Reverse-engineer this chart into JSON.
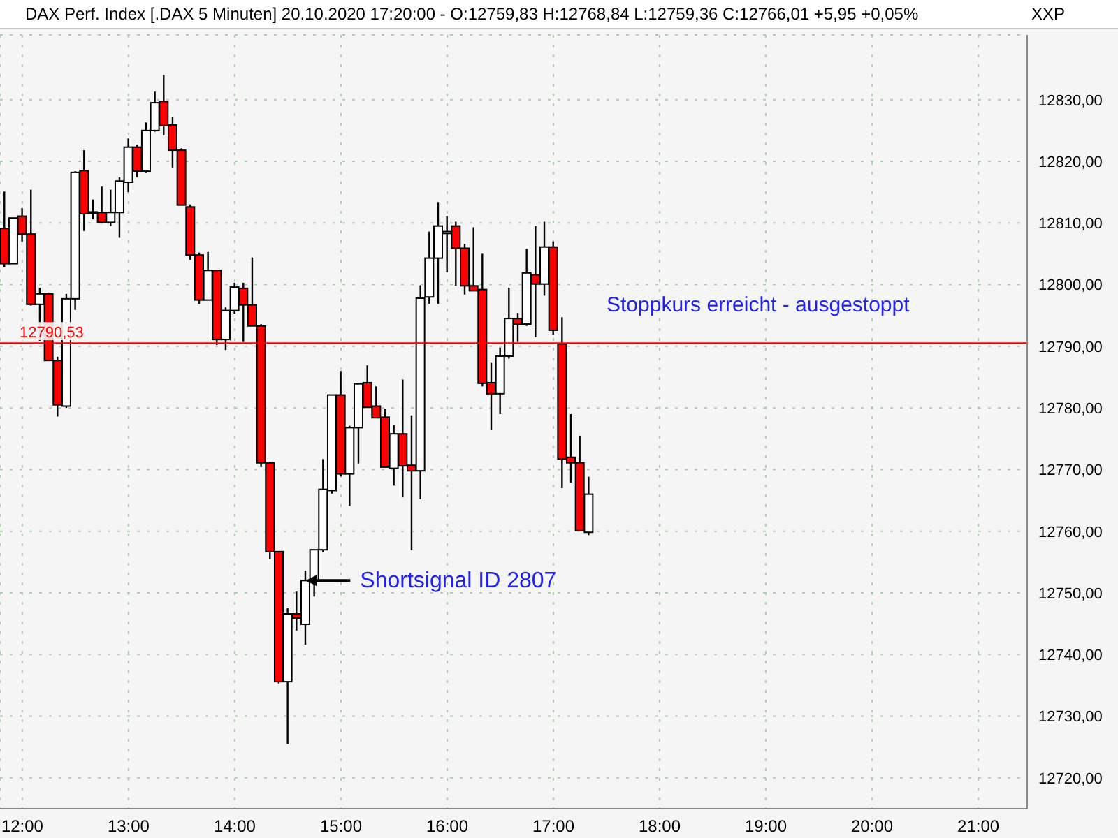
{
  "chart_data": {
    "type": "candlestick",
    "title": "DAX Perf. Index [.DAX  5 Minuten] 20.10.2020 17:20:00 - O:12759,83 H:12768,84 L:12759,36 C:12766,01 +5,95 +0,05%",
    "ylabel": "XXP",
    "x": [
      11.8333,
      11.9167,
      12,
      12.0833,
      12.1667,
      12.25,
      12.3333,
      12.4167,
      12.5,
      12.5833,
      12.6667,
      12.75,
      12.8333,
      12.9167,
      13,
      13.0833,
      13.1667,
      13.25,
      13.3333,
      13.4167,
      13.5,
      13.5833,
      13.6667,
      13.75,
      13.8333,
      13.9167,
      14,
      14.0833,
      14.1667,
      14.25,
      14.3333,
      14.4167,
      14.5,
      14.5833,
      14.6667,
      14.75,
      14.8333,
      14.9167,
      15,
      15.0833,
      15.1667,
      15.25,
      15.3333,
      15.4167,
      15.5,
      15.5833,
      15.6667,
      15.75,
      15.8333,
      15.9167,
      16,
      16.0833,
      16.1667,
      16.25,
      16.3333,
      16.4167,
      16.5,
      16.5833,
      16.6667,
      16.75,
      16.8333,
      16.9167,
      17,
      17.0833,
      17.1667,
      17.25,
      17.3333
    ],
    "ohlc": [
      [
        12809.1,
        12815.1,
        12802.8,
        12803.4
      ],
      [
        12803.4,
        12810.8,
        12803.4,
        12810.8
      ],
      [
        12811.1,
        12812.4,
        12807.0,
        12808.2
      ],
      [
        12808.2,
        12815.4,
        12796.6,
        12796.8
      ],
      [
        12796.8,
        12799.5,
        12790.8,
        12798.5
      ],
      [
        12798.5,
        12798.7,
        12787.7,
        12787.7
      ],
      [
        12787.7,
        12788.3,
        12778.6,
        12780.5
      ],
      [
        12780.3,
        12798.5,
        12780.0,
        12797.7
      ],
      [
        12797.7,
        12818.4,
        12795.9,
        12818.2
      ],
      [
        12818.5,
        12821.8,
        12808.7,
        12811.5
      ],
      [
        12811.7,
        12813.8,
        12810.6,
        12811.8
      ],
      [
        12811.7,
        12815.9,
        12809.9,
        12810.1
      ],
      [
        12810.1,
        12815.4,
        12809.5,
        12811.7
      ],
      [
        12811.7,
        12817.4,
        12807.6,
        12816.8
      ],
      [
        12816.6,
        12823.7,
        12815.0,
        12822.3
      ],
      [
        12822.3,
        12822.7,
        12817.4,
        12818.4
      ],
      [
        12818.4,
        12826.3,
        12818.1,
        12825.0
      ],
      [
        12825.0,
        12831.3,
        12824.8,
        12829.5
      ],
      [
        12829.7,
        12834.0,
        12824.2,
        12825.8
      ],
      [
        12825.9,
        12827.2,
        12819.0,
        12821.8
      ],
      [
        12821.8,
        12822.1,
        12812.9,
        12812.9
      ],
      [
        12812.6,
        12813.0,
        12804.0,
        12804.8
      ],
      [
        12804.8,
        12805.2,
        12796.9,
        12797.5
      ],
      [
        12797.5,
        12805.3,
        12797.5,
        12802.3
      ],
      [
        12802.3,
        12802.3,
        12790.2,
        12791.1
      ],
      [
        12791.1,
        12796.3,
        12789.4,
        12795.8
      ],
      [
        12795.8,
        12800.3,
        12795.3,
        12799.6
      ],
      [
        12799.4,
        12800.3,
        12790.7,
        12796.7
      ],
      [
        12796.7,
        12804.4,
        12793.3,
        12793.3
      ],
      [
        12793.3,
        12793.6,
        12770.4,
        12771.1
      ],
      [
        12771.1,
        12771.3,
        12755.5,
        12756.7
      ],
      [
        12756.7,
        12756.7,
        12735.3,
        12735.6
      ],
      [
        12735.6,
        12747.5,
        12725.5,
        12746.6
      ],
      [
        12746.6,
        12750.2,
        12743.9,
        12745.9
      ],
      [
        12744.9,
        12753.6,
        12741.6,
        12752.0
      ],
      [
        12752.0,
        12757.0,
        12749.4,
        12757.0
      ],
      [
        12757.0,
        12771.7,
        12756.6,
        12766.8
      ],
      [
        12766.6,
        12782.1,
        12766.1,
        12782.1
      ],
      [
        12782.1,
        12786.0,
        12768.9,
        12769.3
      ],
      [
        12769.3,
        12777.1,
        12764.1,
        12776.8
      ],
      [
        12776.8,
        12783.9,
        12771.0,
        12783.9
      ],
      [
        12784.1,
        12786.9,
        12780.1,
        12780.1
      ],
      [
        12780.3,
        12783.5,
        12778.4,
        12778.4
      ],
      [
        12778.5,
        12779.9,
        12770.4,
        12770.4
      ],
      [
        12770.2,
        12777.2,
        12767.4,
        12775.8
      ],
      [
        12775.8,
        12784.6,
        12765.5,
        12770.6
      ],
      [
        12770.7,
        12778.8,
        12756.9,
        12769.8
      ],
      [
        12769.8,
        12799.9,
        12765.2,
        12797.8
      ],
      [
        12798.0,
        12808.6,
        12796.9,
        12804.3
      ],
      [
        12804.3,
        12813.4,
        12796.9,
        12809.5
      ],
      [
        12808.3,
        12811.1,
        12802.0,
        12808.6
      ],
      [
        12809.5,
        12810.2,
        12799.8,
        12805.9
      ],
      [
        12805.9,
        12806.6,
        12798.4,
        12799.8
      ],
      [
        12799.8,
        12809.3,
        12799.0,
        12799.0
      ],
      [
        12799.2,
        12805.0,
        12783.5,
        12784.0
      ],
      [
        12784.1,
        12787.3,
        12776.4,
        12782.3
      ],
      [
        12782.3,
        12789.8,
        12779.0,
        12788.4
      ],
      [
        12788.4,
        12799.5,
        12788.0,
        12794.5
      ],
      [
        12794.5,
        12795.4,
        12790.7,
        12793.6
      ],
      [
        12793.6,
        12805.8,
        12793.3,
        12801.9
      ],
      [
        12801.6,
        12809.5,
        12791.5,
        12800.1
      ],
      [
        12800.1,
        12810.2,
        12798.2,
        12806.1
      ],
      [
        12806.1,
        12807.0,
        12791.9,
        12792.6
      ],
      [
        12790.4,
        12794.7,
        12767.0,
        12771.7
      ],
      [
        12772.0,
        12779.0,
        12767.9,
        12771.1
      ],
      [
        12771.1,
        12775.5,
        12760.1,
        12760.1
      ],
      [
        12759.83,
        12768.84,
        12759.36,
        12766.01
      ]
    ],
    "xlim": [
      11.79,
      21.46
    ],
    "xticks": [
      {
        "value": 12,
        "label": "12:00"
      },
      {
        "value": 13,
        "label": "13:00"
      },
      {
        "value": 14,
        "label": "14:00"
      },
      {
        "value": 15,
        "label": "15:00"
      },
      {
        "value": 16,
        "label": "16:00"
      },
      {
        "value": 17,
        "label": "17:00"
      },
      {
        "value": 18,
        "label": "18:00"
      },
      {
        "value": 19,
        "label": "19:00"
      },
      {
        "value": 20,
        "label": "20:00"
      },
      {
        "value": 21,
        "label": "21:00"
      }
    ],
    "ylim": [
      12715,
      12840.5
    ],
    "yticks": [
      {
        "value": 12720,
        "label": "12720,00"
      },
      {
        "value": 12730,
        "label": "12730,00"
      },
      {
        "value": 12740,
        "label": "12740,00"
      },
      {
        "value": 12750,
        "label": "12750,00"
      },
      {
        "value": 12760,
        "label": "12760,00"
      },
      {
        "value": 12770,
        "label": "12770,00"
      },
      {
        "value": 12780,
        "label": "12780,00"
      },
      {
        "value": 12790,
        "label": "12790,00"
      },
      {
        "value": 12800,
        "label": "12800,00"
      },
      {
        "value": 12810,
        "label": "12810,00"
      },
      {
        "value": 12820,
        "label": "12820,00"
      },
      {
        "value": 12830,
        "label": "12830,00"
      }
    ],
    "grid": true,
    "ref_lines": [
      {
        "axis": "y",
        "value": 12790.53,
        "label": "12790,53",
        "color": "#ff0000"
      }
    ],
    "annotations": [
      {
        "text": "Shortsignal ID 2807",
        "x": 14.6667,
        "y": 12752
      },
      "Stoppkurs erreicht - ausgestoppt"
    ]
  }
}
